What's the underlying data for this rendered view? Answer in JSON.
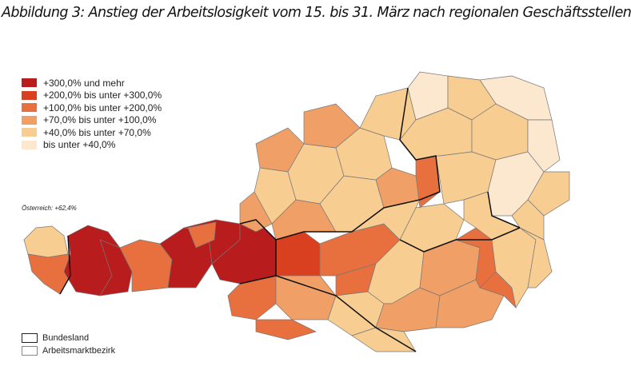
{
  "title": "Abbildung 3: Anstieg der Arbeitslosigkeit vom 15. bis 31. März nach regionalen Geschäftsstellen",
  "legend": [
    {
      "label": "+300,0% und mehr",
      "color": "#b81c1c"
    },
    {
      "label": "+200,0% bis unter +300,0%",
      "color": "#d9401f"
    },
    {
      "label": "+100,0% bis unter +200,0%",
      "color": "#e8703f"
    },
    {
      "label": "+70,0% bis unter +100,0%",
      "color": "#f0a066"
    },
    {
      "label": "+40,0% bis unter +70,0%",
      "color": "#f7cd92"
    },
    {
      "label": "bis unter +40,0%",
      "color": "#fbe8cf"
    }
  ],
  "note": "Österreich: +62,4%",
  "boundary_legend": {
    "bundesland": "Bundesland",
    "bezirk": "Arbeitsmarktbezirk"
  }
}
